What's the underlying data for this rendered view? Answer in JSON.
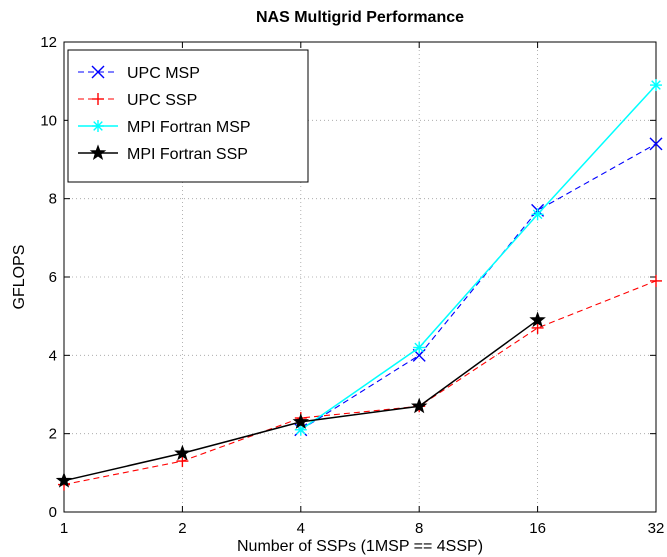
{
  "chart_data": {
    "type": "line",
    "title": "NAS Multigrid Performance",
    "xlabel": "Number of SSPs (1MSP == 4SSP)",
    "ylabel": "GFLOPS",
    "x_scale": "log2",
    "x_ticks": [
      1,
      2,
      4,
      8,
      16,
      32
    ],
    "y_ticks": [
      0,
      2,
      4,
      6,
      8,
      10,
      12
    ],
    "xlim": [
      1,
      32
    ],
    "ylim": [
      0,
      12
    ],
    "grid": true,
    "legend_position": "top-left",
    "series": [
      {
        "name": "UPC MSP",
        "color": "#0000ff",
        "dash": "dashed",
        "marker": "x",
        "x": [
          4,
          8,
          16,
          32
        ],
        "y": [
          2.1,
          4.0,
          7.7,
          9.4
        ]
      },
      {
        "name": "UPC SSP",
        "color": "#ff0000",
        "dash": "dashed",
        "marker": "plus",
        "x": [
          1,
          2,
          4,
          8,
          16,
          32
        ],
        "y": [
          0.7,
          1.3,
          2.4,
          2.7,
          4.7,
          5.9
        ]
      },
      {
        "name": "MPI Fortran MSP",
        "color": "#00ffff",
        "dash": "solid",
        "marker": "asterisk",
        "x": [
          4,
          8,
          16,
          32
        ],
        "y": [
          2.1,
          4.2,
          7.6,
          10.9
        ]
      },
      {
        "name": "MPI Fortran SSP",
        "color": "#000000",
        "dash": "solid",
        "marker": "star",
        "x": [
          1,
          2,
          4,
          8,
          16
        ],
        "y": [
          0.8,
          1.5,
          2.3,
          2.7,
          4.9
        ]
      }
    ]
  }
}
